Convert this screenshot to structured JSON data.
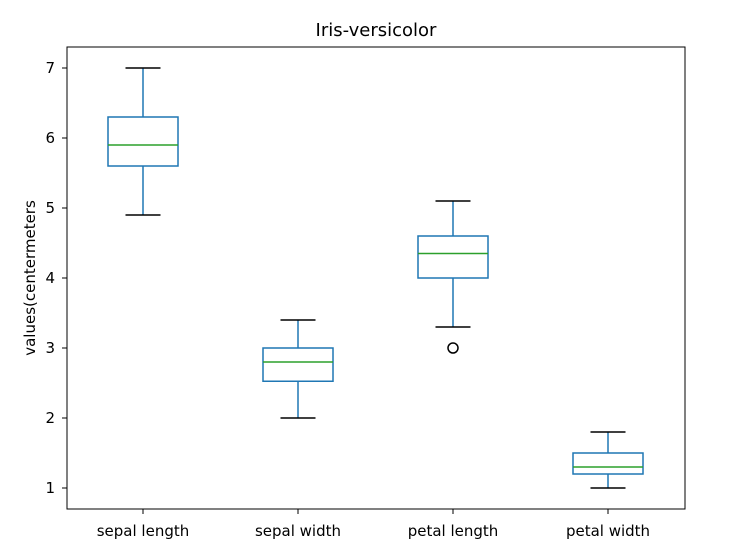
{
  "chart_data": {
    "type": "box",
    "title": "Iris-versicolor",
    "xlabel": "",
    "ylabel": "values(centermeters",
    "ylim": [
      0.7,
      7.3
    ],
    "yticks": [
      1,
      2,
      3,
      4,
      5,
      6,
      7
    ],
    "grid": false,
    "legend": "none",
    "colors": {
      "box": "#1f77b4",
      "median": "#2ca02c",
      "whisker": "#1f77b4",
      "cap": "#000000",
      "flier": "#000000"
    },
    "categories": [
      "sepal length",
      "sepal width",
      "petal length",
      "petal width"
    ],
    "boxes": [
      {
        "label": "sepal length",
        "whisker_low": 4.9,
        "q1": 5.6,
        "median": 5.9,
        "q3": 6.3,
        "whisker_high": 7.0,
        "outliers": []
      },
      {
        "label": "sepal width",
        "whisker_low": 2.0,
        "q1": 2.525,
        "median": 2.8,
        "q3": 3.0,
        "whisker_high": 3.4,
        "outliers": []
      },
      {
        "label": "petal length",
        "whisker_low": 3.3,
        "q1": 4.0,
        "median": 4.35,
        "q3": 4.6,
        "whisker_high": 5.1,
        "outliers": [
          3.0
        ]
      },
      {
        "label": "petal width",
        "whisker_low": 1.0,
        "q1": 1.2,
        "median": 1.3,
        "q3": 1.5,
        "whisker_high": 1.8,
        "outliers": []
      }
    ]
  }
}
